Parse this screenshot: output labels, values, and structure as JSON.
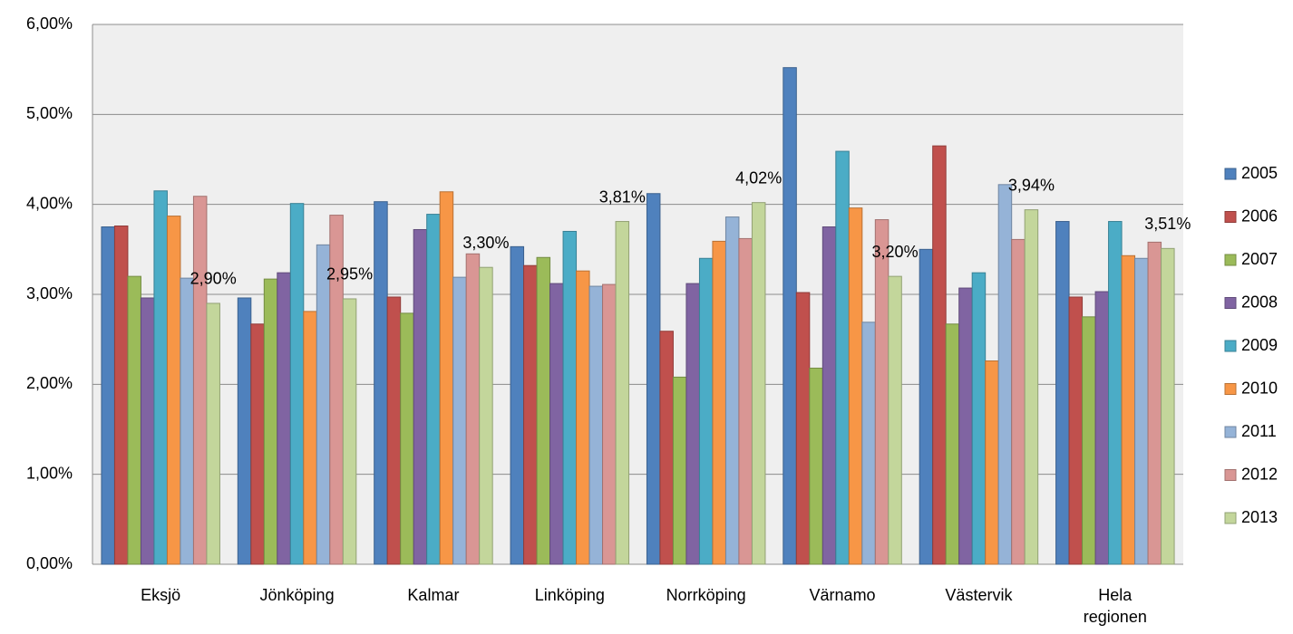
{
  "chart_data": {
    "type": "bar",
    "categories": [
      "Eksjö",
      "Jönköping",
      "Kalmar",
      "Linköping",
      "Norrköping",
      "Värnamo",
      "Västervik",
      "Hela regionen"
    ],
    "series": [
      {
        "name": "2005",
        "color": "#4f81bd",
        "values": [
          3.75,
          2.96,
          4.03,
          3.53,
          4.12,
          5.52,
          3.5,
          3.81
        ]
      },
      {
        "name": "2006",
        "color": "#c0504d",
        "values": [
          3.76,
          2.67,
          2.97,
          3.32,
          2.59,
          3.02,
          4.65,
          2.97
        ]
      },
      {
        "name": "2007",
        "color": "#9bbb59",
        "values": [
          3.2,
          3.17,
          2.79,
          3.41,
          2.08,
          2.18,
          2.67,
          2.75
        ]
      },
      {
        "name": "2008",
        "color": "#8064a2",
        "values": [
          2.96,
          3.24,
          3.72,
          3.12,
          3.12,
          3.75,
          3.07,
          3.03
        ]
      },
      {
        "name": "2009",
        "color": "#4bacc6",
        "values": [
          4.15,
          4.01,
          3.89,
          3.7,
          3.4,
          4.59,
          3.24,
          3.81
        ]
      },
      {
        "name": "2010",
        "color": "#f79646",
        "values": [
          3.87,
          2.81,
          4.14,
          3.26,
          3.59,
          3.96,
          2.26,
          3.43
        ]
      },
      {
        "name": "2011",
        "color": "#95b3d7",
        "values": [
          3.18,
          3.55,
          3.19,
          3.09,
          3.86,
          2.69,
          4.22,
          3.4
        ]
      },
      {
        "name": "2012",
        "color": "#d99694",
        "values": [
          4.09,
          3.88,
          3.45,
          3.11,
          3.62,
          3.83,
          3.61,
          3.58
        ]
      },
      {
        "name": "2013",
        "color": "#c3d69b",
        "values": [
          2.9,
          2.95,
          3.3,
          3.81,
          4.02,
          3.2,
          3.94,
          3.51
        ],
        "value_labels": [
          "2,90%",
          "2,95%",
          "3,30%",
          "3,81%",
          "4,02%",
          "3,20%",
          "3,94%",
          "3,51%"
        ]
      }
    ],
    "ylim": [
      0,
      6
    ],
    "yticks": [
      {
        "value": 0,
        "label": "0,00%"
      },
      {
        "value": 1,
        "label": "1,00%"
      },
      {
        "value": 2,
        "label": "2,00%"
      },
      {
        "value": 3,
        "label": "3,00%"
      },
      {
        "value": 4,
        "label": "4,00%"
      },
      {
        "value": 5,
        "label": "5,00%"
      },
      {
        "value": 6,
        "label": "6,00%"
      }
    ],
    "grid": true,
    "legend": "right"
  }
}
